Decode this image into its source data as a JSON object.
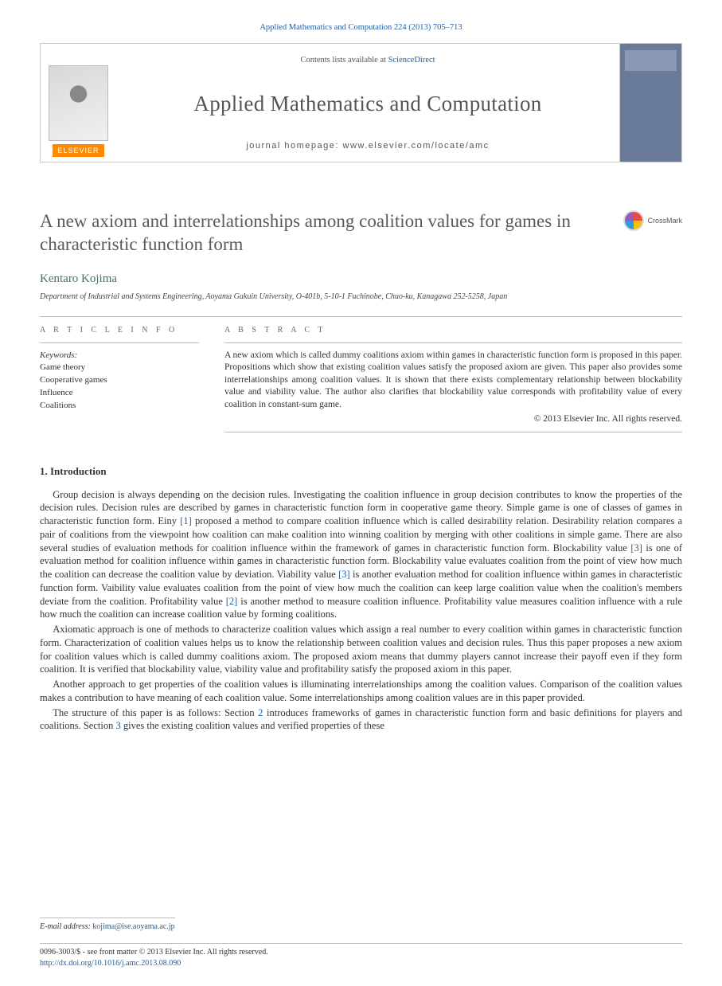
{
  "topbar": "Applied Mathematics and Computation 224 (2013) 705–713",
  "header": {
    "contents_prefix": "Contents lists available at ",
    "contents_link": "ScienceDirect",
    "journal": "Applied Mathematics and Computation",
    "homepage_label": "journal homepage: ",
    "homepage_url": "www.elsevier.com/locate/amc",
    "publisher": "ELSEVIER"
  },
  "crossmark": "CrossMark",
  "title": "A new axiom and interrelationships among coalition values for games in characteristic function form",
  "author": "Kentaro Kojima",
  "affiliation": "Department of Industrial and Systems Engineering, Aoyama Gakuin University, O-401b, 5-10-1 Fuchinobe, Chuo-ku, Kanagawa 252-5258, Japan",
  "info_head": "A R T I C L E   I N F O",
  "abstract_head": "A B S T R A C T",
  "keywords_label": "Keywords:",
  "keywords": [
    "Game theory",
    "Cooperative games",
    "Influence",
    "Coalitions"
  ],
  "abstract": "A new axiom which is called dummy coalitions axiom within games in characteristic function form is proposed in this paper. Propositions which show that existing coalition values satisfy the proposed axiom are given. This paper also provides some interrelationships among coalition values. It is shown that there exists complementary relationship between blockability value and viability value. The author also clarifies that blockability value corresponds with profitability value of every coalition in constant-sum game.",
  "copyright": "© 2013 Elsevier Inc. All rights reserved.",
  "section1_head": "1. Introduction",
  "p1": "Group decision is always depending on the decision rules. Investigating the coalition influence in group decision contributes to know the properties of the decision rules. Decision rules are described by games in characteristic function form in cooperative game theory. Simple game is one of classes of games in characteristic function form. Einy [1] proposed a method to compare coalition influence which is called desirability relation. Desirability relation compares a pair of coalitions from the viewpoint how coalition can make coalition into winning coalition by merging with other coalitions in simple game. There are also several studies of evaluation methods for coalition influence within the framework of games in characteristic function form. Blockability value [3] is one of evaluation method for coalition influence within games in characteristic function form. Blockability value evaluates coalition from the point of view how much the coalition can decrease the coalition value by deviation. Viability value [3] is another evaluation method for coalition influence within games in characteristic function form. Vaibility value evaluates coalition from the point of view how much the coalition can keep large coalition value when the coalition's members deviate from the coalition. Profitability value [2] is another method to measure coalition influence. Profitability value measures coalition influence with a rule how much the coalition can increase coalition value by forming coalitions.",
  "p2": "Axiomatic approach is one of methods to characterize coalition values which assign a real number to every coalition within games in characteristic function form. Characterization of coalition values helps us to know the relationship between coalition values and decision rules. Thus this paper proposes a new axiom for coalition values which is called dummy coalitions axiom. The proposed axiom means that dummy players cannot increase their payoff even if they form coalition. It is verified that blockability value, viability value and profitability satisfy the proposed axiom in this paper.",
  "p3": "Another approach to get properties of the coalition values is illuminating interrelationships among the coalition values. Comparison of the coalition values makes a contribution to have meaning of each coalition value. Some interrelationships among coalition values are in this paper provided.",
  "p4": "The structure of this paper is as follows: Section 2 introduces frameworks of games in characteristic function form and basic definitions for players and coalitions. Section 3 gives the existing coalition values and verified properties of these",
  "footer": {
    "email_label": "E-mail address:",
    "email": "kojima@ise.aoyama.ac.jp",
    "line1": "0096-3003/$ - see front matter © 2013 Elsevier Inc. All rights reserved.",
    "doi": "http://dx.doi.org/10.1016/j.amc.2013.08.090"
  },
  "colors": {
    "link": "#2060a0",
    "author": "#477070",
    "elsevier_orange": "#ff8a00"
  }
}
